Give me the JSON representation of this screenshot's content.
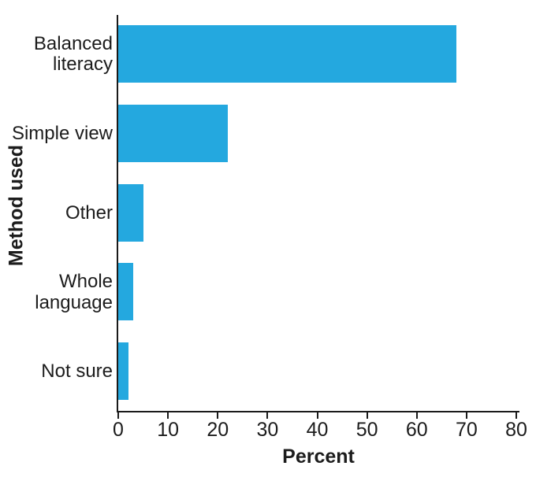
{
  "chart_data": {
    "type": "bar",
    "orientation": "horizontal",
    "title": "",
    "categories": [
      "Balanced literacy",
      "Simple view",
      "Other",
      "Whole language",
      "Not sure"
    ],
    "values": [
      68,
      22,
      5,
      3,
      2
    ],
    "xlabel": "Percent",
    "ylabel": "Method used",
    "xlim": [
      0,
      80
    ],
    "x_ticks": [
      0,
      10,
      20,
      30,
      40,
      50,
      60,
      70,
      80
    ],
    "grid": false,
    "legend": false,
    "bar_color": "#24A8DF",
    "axis_color": "#1a1a1a",
    "text_color": "#1c1c1c"
  }
}
